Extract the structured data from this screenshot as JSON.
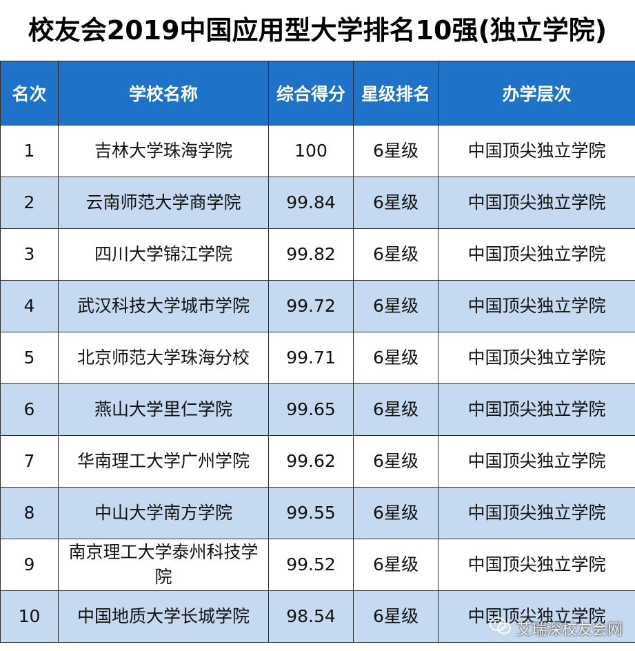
{
  "title": "校友会2019中国应用型大学排名10强(独立学院)",
  "headers": [
    "名次",
    "学校名称",
    "综合得分",
    "星级排名",
    "办学层次"
  ],
  "rows": [
    {
      "rank": "1",
      "school": "吉林大学珠海学院",
      "score": "100",
      "star": "6星级",
      "level": "中国顶尖独立学院"
    },
    {
      "rank": "2",
      "school": "云南师范大学商学院",
      "score": "99.84",
      "star": "6星级",
      "level": "中国顶尖独立学院"
    },
    {
      "rank": "3",
      "school": "四川大学锦江学院",
      "score": "99.82",
      "star": "6星级",
      "level": "中国顶尖独立学院"
    },
    {
      "rank": "4",
      "school": "武汉科技大学城市学院",
      "score": "99.72",
      "star": "6星级",
      "level": "中国顶尖独立学院"
    },
    {
      "rank": "5",
      "school": "北京师范大学珠海分校",
      "score": "99.71",
      "star": "6星级",
      "level": "中国顶尖独立学院"
    },
    {
      "rank": "6",
      "school": "燕山大学里仁学院",
      "score": "99.65",
      "star": "6星级",
      "level": "中国顶尖独立学院"
    },
    {
      "rank": "7",
      "school": "华南理工大学广州学院",
      "score": "99.62",
      "star": "6星级",
      "level": "中国顶尖独立学院"
    },
    {
      "rank": "8",
      "school": "中山大学南方学院",
      "score": "99.55",
      "star": "6星级",
      "level": "中国顶尖独立学院"
    },
    {
      "rank": "9",
      "school": "南京理工大学泰州科技学院",
      "score": "99.52",
      "star": "6星级",
      "level": "中国顶尖独立学院"
    },
    {
      "rank": "10",
      "school": "中国地质大学长城学院",
      "score": "98.54",
      "star": "6星级",
      "level": "中国顶尖独立学院"
    }
  ],
  "watermark": {
    "icon": "wechat-icon",
    "text": "艾瑞深校友会网"
  },
  "colors": {
    "header_bg": "#1e73c9",
    "header_text": "#ffffff",
    "stripe": "#c5d9f0"
  }
}
